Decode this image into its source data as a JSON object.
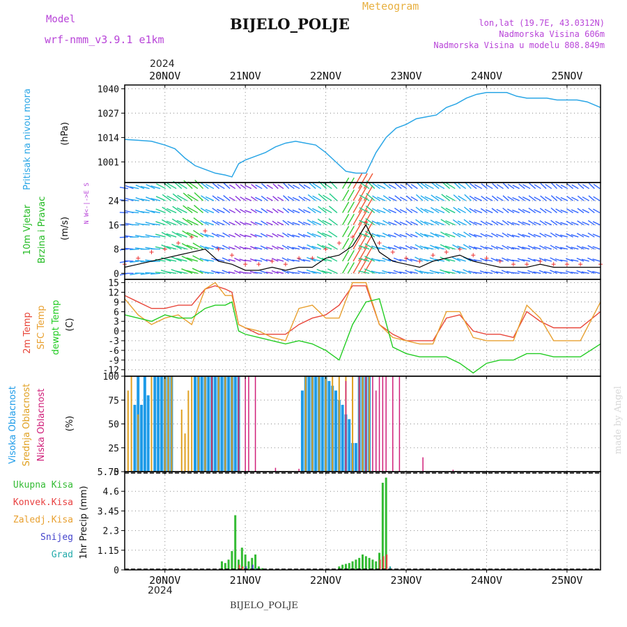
{
  "header": {
    "model_label": "Model",
    "model_name": "wrf-nmm_v3.9.1 e1km",
    "title": "BIJELO_POLJE",
    "product": "Meteogram",
    "coords": "lon,lat (19.7E, 43.0312N)",
    "elevation": "Nadmorska Visina 606m",
    "model_elevation": "Nadmorska Visina u modelu 808.849m",
    "credit": "made by Angel",
    "footer": "BIJELO_POLJE",
    "year": "2024"
  },
  "colors": {
    "pressure": "#2aa6e6",
    "wind_label": "#22bb22",
    "temp": "#e8463a",
    "sfc": "#e8a030",
    "dewpt": "#22cc22",
    "high_cloud": "#1e9be8",
    "mid_cloud": "#e0a020",
    "low_cloud": "#d0207a",
    "total_precip": "#33bb33",
    "conv_precip": "#e84040",
    "snow": "#4444cc",
    "graupel": "#22aaaa",
    "magenta_text": "#b844d8"
  },
  "chart_data": [
    {
      "type": "line",
      "name": "pressure",
      "ylabel": [
        "Pritisak na nivou mora",
        "(hPa)"
      ],
      "yticks": [
        1001,
        1014,
        1027,
        1040
      ],
      "ylim": [
        990,
        1042
      ],
      "x_unit": "hours since 2024-11-20 00UTC",
      "x": [
        -12,
        -8,
        -4,
        0,
        3,
        6,
        9,
        12,
        15,
        18,
        20,
        22,
        24,
        27,
        30,
        33,
        36,
        39,
        42,
        45,
        48,
        51,
        54,
        57,
        60,
        63,
        66,
        69,
        72,
        75,
        78,
        81,
        84,
        87,
        90,
        93,
        96,
        99,
        102,
        105,
        108,
        111,
        114,
        117,
        120,
        123,
        126,
        130
      ],
      "values": [
        1013,
        1012.5,
        1012,
        1010,
        1008,
        1003,
        999,
        997,
        995,
        994,
        993,
        1000,
        1002,
        1004,
        1006,
        1009,
        1011,
        1012,
        1011,
        1010,
        1006,
        1001,
        996,
        995,
        995,
        1006,
        1014,
        1019,
        1021,
        1024,
        1025,
        1026,
        1030,
        1032,
        1035,
        1037,
        1038,
        1038,
        1038,
        1036,
        1035,
        1035,
        1035,
        1034,
        1034,
        1034,
        1033,
        1030
      ]
    },
    {
      "type": "scatter",
      "name": "wind",
      "ylabel": [
        "10m Vjetar",
        "Brzina i Pravac",
        "(m/s)"
      ],
      "compass": "N  W<-|->E  S",
      "yticks": [
        0,
        8,
        16,
        24
      ],
      "ylim": [
        -2,
        30
      ],
      "x_unit": "hours since 2024-11-20 00UTC",
      "speed_x": [
        -12,
        -8,
        -4,
        0,
        4,
        8,
        12,
        16,
        20,
        24,
        28,
        32,
        36,
        40,
        44,
        48,
        52,
        56,
        60,
        64,
        68,
        72,
        76,
        80,
        84,
        88,
        92,
        96,
        100,
        104,
        108,
        112,
        116,
        120,
        124,
        130
      ],
      "speed": [
        2,
        3,
        4,
        5,
        6,
        7,
        8,
        4,
        3,
        1,
        1,
        2,
        1,
        2,
        2,
        5,
        6,
        9,
        16,
        7,
        4,
        3,
        2,
        4,
        5,
        6,
        4,
        3,
        2,
        2,
        2,
        3,
        2,
        2,
        2,
        2
      ],
      "gust": [
        3,
        5,
        7,
        8,
        10,
        12,
        14,
        8,
        6,
        3,
        3,
        4,
        3,
        5,
        5,
        8,
        10,
        12,
        17,
        10,
        7,
        5,
        4,
        6,
        7,
        8,
        6,
        5,
        4,
        3,
        3,
        4,
        3,
        3,
        3,
        3
      ],
      "barb_rows": [
        0,
        4,
        8,
        12,
        16,
        20,
        24,
        28
      ]
    },
    {
      "type": "line",
      "name": "temperature",
      "ylabel": [
        "2m Temp",
        "SFC Temp",
        "dewpt Temp",
        "(C)"
      ],
      "yticks": [
        -12,
        -9,
        -6,
        -3,
        0,
        3,
        6,
        9,
        12,
        15
      ],
      "ylim": [
        -14,
        16
      ],
      "x_unit": "hours since 2024-11-20 00UTC",
      "x": [
        -12,
        -8,
        -4,
        0,
        4,
        8,
        12,
        15,
        18,
        20,
        22,
        24,
        28,
        32,
        36,
        40,
        44,
        48,
        52,
        56,
        60,
        64,
        68,
        72,
        76,
        80,
        84,
        88,
        92,
        96,
        100,
        104,
        108,
        112,
        116,
        120,
        124,
        130
      ],
      "series": [
        {
          "name": "2m Temp",
          "values": [
            11,
            9,
            7,
            7,
            8,
            8,
            13,
            14,
            13,
            12,
            2,
            1,
            -1,
            -1,
            -1,
            2,
            4,
            5,
            8,
            14,
            14,
            2,
            -1,
            -3,
            -3,
            -3,
            4,
            5,
            0,
            -1,
            -1,
            -2,
            6,
            3,
            1,
            1,
            1,
            6
          ]
        },
        {
          "name": "SFC Temp",
          "values": [
            10,
            5,
            2,
            4,
            5,
            2,
            13,
            15,
            11,
            11,
            2,
            1,
            0,
            -2,
            -3,
            7,
            8,
            4,
            4,
            15,
            15,
            2,
            -2,
            -3,
            -4,
            -4,
            6,
            6,
            -2,
            -3,
            -3,
            -3,
            8,
            4,
            -3,
            -3,
            -3,
            9
          ]
        },
        {
          "name": "dewpt Temp",
          "values": [
            5,
            4,
            3,
            5,
            4,
            4,
            7,
            8,
            8,
            9,
            0,
            -1,
            -2,
            -3,
            -4,
            -3,
            -4,
            -6,
            -9,
            2,
            9,
            10,
            -5,
            -7,
            -8,
            -8,
            -8,
            -10,
            -13,
            -10,
            -9,
            -9,
            -7,
            -7,
            -8,
            -8,
            -8,
            -4
          ]
        }
      ]
    },
    {
      "type": "bar",
      "name": "cloud_cover",
      "ylabel": [
        "Visoka Oblacnost",
        "Srednja Oblacnost",
        "Niska Oblacnost",
        "(%)"
      ],
      "yticks": [
        0,
        25,
        50,
        75,
        100
      ],
      "ylim": [
        0,
        100
      ],
      "x_unit": "hours since 2024-11-20 00UTC",
      "series": [
        {
          "name": "Visoka Oblacnost",
          "x": [
            -9,
            -8,
            -7,
            -6,
            -5,
            -3,
            -2,
            -1,
            0,
            1,
            2,
            9,
            10,
            11,
            12,
            13,
            14,
            15,
            16,
            17,
            18,
            19,
            20,
            21,
            22,
            41,
            42,
            43,
            44,
            45,
            46,
            47,
            48,
            49,
            50,
            51,
            52,
            53,
            54,
            55,
            56,
            57,
            58,
            59,
            60,
            61
          ],
          "values": [
            70,
            100,
            70,
            100,
            80,
            100,
            100,
            100,
            100,
            100,
            100,
            100,
            100,
            100,
            100,
            100,
            100,
            100,
            100,
            100,
            100,
            100,
            100,
            100,
            100,
            85,
            100,
            100,
            100,
            100,
            100,
            100,
            100,
            95,
            90,
            85,
            75,
            70,
            60,
            55,
            30,
            30,
            100,
            100,
            100,
            100
          ]
        },
        {
          "name": "Srednja Oblacnost",
          "x": [
            -11,
            -10,
            -8,
            -4,
            0,
            1,
            2,
            5,
            6,
            7,
            8,
            10,
            12,
            14,
            16,
            18,
            20,
            22,
            42,
            44,
            46,
            48,
            50,
            52,
            54,
            56,
            58,
            59,
            60,
            61
          ],
          "values": [
            85,
            100,
            60,
            100,
            100,
            100,
            100,
            65,
            40,
            85,
            100,
            100,
            100,
            100,
            100,
            100,
            100,
            100,
            100,
            100,
            100,
            100,
            100,
            100,
            100,
            100,
            100,
            100,
            100,
            100
          ]
        },
        {
          "name": "Niska Oblacnost",
          "x": [
            14,
            22,
            24,
            25,
            27,
            33,
            40,
            54,
            58,
            60,
            62,
            63,
            64,
            65,
            66,
            68,
            70,
            77,
            86
          ],
          "values": [
            100,
            100,
            100,
            100,
            100,
            4,
            3,
            95,
            100,
            100,
            100,
            85,
            100,
            100,
            100,
            100,
            100,
            15,
            2
          ]
        }
      ]
    },
    {
      "type": "bar",
      "name": "precipitation",
      "ylabel": [
        "1hr Precip (mm)"
      ],
      "legend": [
        "Ukupna Kisa",
        "Konvek.Kisa",
        "Zaledj.Kisa",
        "Snijeg",
        "Grad"
      ],
      "yticks": [
        0,
        1.15,
        2.3,
        3.45,
        4.6,
        5.75
      ],
      "ylim": [
        0,
        5.75
      ],
      "x_unit": "hours since 2024-11-20 00UTC",
      "series": [
        {
          "name": "Ukupna Kisa",
          "x": [
            17,
            18,
            19,
            20,
            21,
            22,
            23,
            24,
            25,
            26,
            27,
            28,
            29,
            30,
            52,
            53,
            54,
            55,
            56,
            57,
            58,
            59,
            60,
            61,
            62,
            63,
            64,
            65,
            66
          ],
          "values": [
            0.5,
            0.4,
            0.6,
            1.1,
            3.2,
            0.6,
            1.3,
            0.9,
            0.5,
            0.7,
            0.9,
            0.2,
            0.1,
            0.05,
            0.2,
            0.3,
            0.35,
            0.4,
            0.5,
            0.6,
            0.7,
            0.9,
            0.8,
            0.7,
            0.6,
            0.5,
            1.0,
            5.1,
            5.4
          ]
        },
        {
          "name": "Konvek.Kisa",
          "x": [
            22,
            23,
            64,
            65,
            66
          ],
          "values": [
            0.3,
            0.2,
            0.6,
            0.8,
            0.9
          ]
        },
        {
          "name": "Snijeg",
          "x": [
            24,
            26
          ],
          "values": [
            0.2,
            0.3
          ]
        },
        {
          "name": "Grad",
          "x": [
            27,
            67
          ],
          "values": [
            0.1,
            0.2
          ]
        }
      ]
    }
  ],
  "time_axis": {
    "labels": [
      "20NOV",
      "21NOV",
      "22NOV",
      "23NOV",
      "24NOV",
      "25NOV"
    ],
    "label_hours": [
      0,
      24,
      48,
      72,
      96,
      120
    ],
    "xlim_hours": [
      -12,
      130
    ]
  }
}
